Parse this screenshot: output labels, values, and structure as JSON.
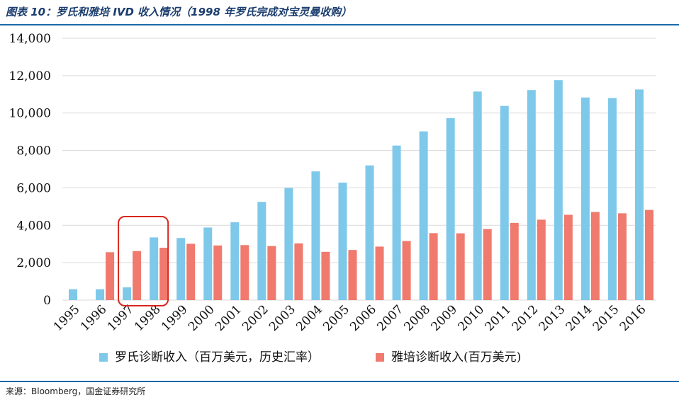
{
  "title": "图表 10：罗氏和雅培 IVD 收入情况（1998 年罗氏完成对宝灵曼收购）",
  "source": "来源：Bloomberg，国金证券研究所",
  "colors": {
    "roche": "#7ec8ea",
    "abbott": "#f07a6e",
    "highlight": "#d9261c",
    "grid": "#d9d9d9"
  },
  "chart_data": {
    "type": "bar",
    "categories": [
      "1995",
      "1996",
      "1997",
      "1998",
      "1999",
      "2000",
      "2001",
      "2002",
      "2003",
      "2004",
      "2005",
      "2006",
      "2007",
      "2008",
      "2009",
      "2010",
      "2011",
      "2012",
      "2013",
      "2014",
      "2015",
      "2016"
    ],
    "series": [
      {
        "name": "罗氏诊断收入（百万美元，历史汇率）",
        "color": "#7ec8ea",
        "values": [
          580,
          580,
          680,
          3350,
          3320,
          3880,
          4160,
          5250,
          6000,
          6880,
          6280,
          7200,
          8260,
          9020,
          9730,
          11150,
          10380,
          11230,
          11760,
          10830,
          10800,
          11260
        ]
      },
      {
        "name": "雅培诊断收入(百万美元)",
        "color": "#f07a6e",
        "values": [
          null,
          2560,
          2620,
          2800,
          3010,
          2920,
          2940,
          2890,
          3030,
          2580,
          2680,
          2860,
          3160,
          3580,
          3570,
          3800,
          4130,
          4300,
          4560,
          4710,
          4640,
          4820
        ]
      }
    ],
    "yticks": [
      "0",
      "2,000",
      "4,000",
      "6,000",
      "8,000",
      "10,000",
      "12,000",
      "14,000"
    ],
    "ylim": [
      0,
      14000
    ],
    "grid": true,
    "highlight_categories": [
      "1997",
      "1998"
    ],
    "legend_position": "bottom"
  }
}
